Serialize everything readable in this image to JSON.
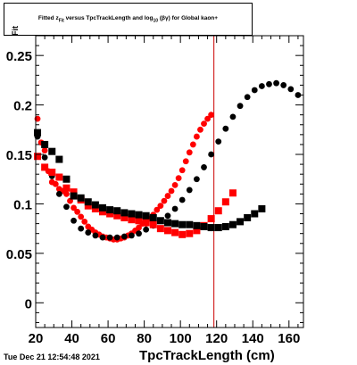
{
  "chart_data": {
    "type": "scatter",
    "title_parts": {
      "prefix": "Fitted",
      "z": "z",
      "z_sub": "Fit",
      "middle": "versus TpcTrackLength and log",
      "log_sub": "10",
      "suffix": "(βγ) for Global kaon+"
    },
    "xlabel": "TpcTrackLength (cm)",
    "ylabel_visible": "Fit",
    "xlim": [
      20,
      168
    ],
    "ylim": [
      -0.025,
      0.27
    ],
    "xticks": [
      20,
      40,
      60,
      80,
      100,
      120,
      140,
      160
    ],
    "yticks": [
      0,
      0.05,
      0.1,
      0.15,
      0.2,
      0.25
    ],
    "ytick_labels": [
      "0",
      "0.05",
      "0.1",
      "0.15",
      "0.2",
      "0.25"
    ],
    "vline_x": 118.5,
    "series": [
      {
        "color": "#ff0000",
        "marker": "circle",
        "points": [
          [
            21,
            0.186
          ],
          [
            23,
            0.162
          ],
          [
            25,
            0.154
          ],
          [
            27,
            0.133
          ],
          [
            29,
            0.122
          ],
          [
            31,
            0.12
          ],
          [
            33,
            0.115
          ],
          [
            35,
            0.113
          ],
          [
            37,
            0.11
          ],
          [
            39,
            0.103
          ],
          [
            41,
            0.096
          ],
          [
            43,
            0.092
          ],
          [
            45,
            0.087
          ],
          [
            47,
            0.082
          ],
          [
            49,
            0.077
          ],
          [
            51,
            0.074
          ],
          [
            53,
            0.071
          ],
          [
            55,
            0.069
          ],
          [
            57,
            0.067
          ],
          [
            59,
            0.066
          ],
          [
            61,
            0.065
          ],
          [
            63,
            0.064
          ],
          [
            65,
            0.064
          ],
          [
            67,
            0.065
          ],
          [
            69,
            0.066
          ],
          [
            71,
            0.068
          ],
          [
            73,
            0.07
          ],
          [
            75,
            0.073
          ],
          [
            77,
            0.076
          ],
          [
            79,
            0.08
          ],
          [
            81,
            0.08
          ],
          [
            83,
            0.085
          ],
          [
            85,
            0.089
          ],
          [
            87,
            0.094
          ],
          [
            89,
            0.098
          ],
          [
            91,
            0.103
          ],
          [
            93,
            0.108
          ],
          [
            95,
            0.113
          ],
          [
            97,
            0.119
          ],
          [
            99,
            0.126
          ],
          [
            101,
            0.134
          ],
          [
            103,
            0.143
          ],
          [
            105,
            0.152
          ],
          [
            107,
            0.16
          ],
          [
            109,
            0.168
          ],
          [
            111,
            0.175
          ],
          [
            113,
            0.181
          ],
          [
            115,
            0.186
          ],
          [
            117,
            0.19
          ]
        ]
      },
      {
        "color": "#000000",
        "marker": "circle",
        "points": [
          [
            21,
            0.168
          ],
          [
            25,
            0.147
          ],
          [
            29,
            0.128
          ],
          [
            33,
            0.11
          ],
          [
            37,
            0.097
          ],
          [
            41,
            0.083
          ],
          [
            45,
            0.075
          ],
          [
            49,
            0.071
          ],
          [
            53,
            0.068
          ],
          [
            57,
            0.066
          ],
          [
            61,
            0.066
          ],
          [
            65,
            0.066
          ],
          [
            69,
            0.067
          ],
          [
            73,
            0.068
          ],
          [
            77,
            0.07
          ],
          [
            81,
            0.074
          ],
          [
            85,
            0.078
          ],
          [
            89,
            0.083
          ],
          [
            93,
            0.088
          ],
          [
            97,
            0.095
          ],
          [
            101,
            0.104
          ],
          [
            105,
            0.114
          ],
          [
            109,
            0.125
          ],
          [
            113,
            0.137
          ],
          [
            117,
            0.15
          ],
          [
            121,
            0.163
          ],
          [
            125,
            0.176
          ],
          [
            129,
            0.188
          ],
          [
            133,
            0.199
          ],
          [
            137,
            0.208
          ],
          [
            141,
            0.215
          ],
          [
            145,
            0.219
          ],
          [
            149,
            0.221
          ],
          [
            153,
            0.222
          ],
          [
            157,
            0.22
          ],
          [
            161,
            0.216
          ],
          [
            165,
            0.21
          ]
        ]
      },
      {
        "color": "#ff0000",
        "marker": "square",
        "points": [
          [
            21,
            0.148
          ],
          [
            25,
            0.137
          ],
          [
            29,
            0.132
          ],
          [
            33,
            0.127
          ],
          [
            37,
            0.116
          ],
          [
            41,
            0.112
          ],
          [
            45,
            0.104
          ],
          [
            49,
            0.098
          ],
          [
            53,
            0.095
          ],
          [
            57,
            0.092
          ],
          [
            61,
            0.09
          ],
          [
            65,
            0.088
          ],
          [
            69,
            0.086
          ],
          [
            73,
            0.084
          ],
          [
            77,
            0.083
          ],
          [
            81,
            0.081
          ],
          [
            85,
            0.079
          ],
          [
            89,
            0.075
          ],
          [
            93,
            0.073
          ],
          [
            97,
            0.071
          ],
          [
            101,
            0.069
          ],
          [
            105,
            0.07
          ],
          [
            109,
            0.073
          ],
          [
            113,
            0.078
          ],
          [
            117,
            0.085
          ],
          [
            121,
            0.093
          ],
          [
            125,
            0.102
          ],
          [
            129,
            0.111
          ]
        ]
      },
      {
        "color": "#000000",
        "marker": "square",
        "points": [
          [
            21,
            0.172
          ],
          [
            25,
            0.16
          ],
          [
            29,
            0.153
          ],
          [
            33,
            0.145
          ],
          [
            37,
            0.125
          ],
          [
            41,
            0.108
          ],
          [
            45,
            0.106
          ],
          [
            49,
            0.102
          ],
          [
            53,
            0.099
          ],
          [
            57,
            0.096
          ],
          [
            61,
            0.094
          ],
          [
            65,
            0.093
          ],
          [
            69,
            0.091
          ],
          [
            73,
            0.09
          ],
          [
            77,
            0.089
          ],
          [
            81,
            0.088
          ],
          [
            85,
            0.086
          ],
          [
            89,
            0.083
          ],
          [
            93,
            0.081
          ],
          [
            97,
            0.08
          ],
          [
            101,
            0.079
          ],
          [
            105,
            0.079
          ],
          [
            109,
            0.078
          ],
          [
            113,
            0.077
          ],
          [
            117,
            0.076
          ],
          [
            121,
            0.076
          ],
          [
            125,
            0.077
          ],
          [
            129,
            0.079
          ],
          [
            133,
            0.082
          ],
          [
            137,
            0.086
          ],
          [
            141,
            0.09
          ],
          [
            145,
            0.095
          ]
        ]
      }
    ]
  },
  "footer": {
    "datestamp": "Tue Dec 21 12:54:48 2021"
  }
}
